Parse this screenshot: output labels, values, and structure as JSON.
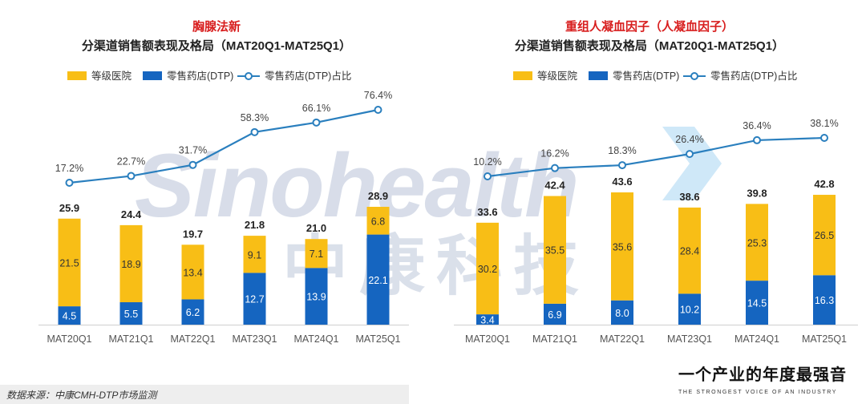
{
  "colors": {
    "hospital": "#f8be16",
    "dtp": "#1565c0",
    "line": "#2a7fbe",
    "title_red": "#d81e1e"
  },
  "legend": {
    "hospital": "等级医院",
    "dtp": "零售药店(DTP)",
    "share": "零售药店(DTP)占比"
  },
  "watermark": {
    "text": "Sinohealth",
    "cn": "中康科技"
  },
  "footer": {
    "source": "数据来源：中康CMH-DTP市场监测",
    "slogan": "一个产业的年度最强音",
    "slogan_en": "THE STRONGEST VOICE OF AN INDUSTRY"
  },
  "chart_data": [
    {
      "type": "bar",
      "stacked": true,
      "title": "胸腺法新",
      "subtitle": "分渠道销售额表现及格局（MAT20Q1-MAT25Q1）",
      "categories": [
        "MAT20Q1",
        "MAT21Q1",
        "MAT22Q1",
        "MAT23Q1",
        "MAT24Q1",
        "MAT25Q1"
      ],
      "totals": [
        "25.9",
        "24.4",
        "19.7",
        "21.8",
        "21.0",
        "28.9"
      ],
      "series": [
        {
          "name": "零售药店(DTP)",
          "values": [
            4.5,
            5.5,
            6.2,
            12.7,
            13.9,
            22.1
          ],
          "labels": [
            "4.5",
            "5.5",
            "6.2",
            "12.7",
            "13.9",
            "22.1"
          ]
        },
        {
          "name": "等级医院",
          "values": [
            21.5,
            18.9,
            13.4,
            9.1,
            7.1,
            6.8
          ],
          "labels": [
            "21.5",
            "18.9",
            "13.4",
            "9.1",
            "7.1",
            "6.8"
          ]
        }
      ],
      "share_line": {
        "name": "零售药店(DTP)占比",
        "values": [
          17.2,
          22.7,
          31.7,
          58.3,
          66.1,
          76.4
        ],
        "labels": [
          "17.2%",
          "22.7%",
          "31.7%",
          "58.3%",
          "66.1%",
          "76.4%"
        ]
      },
      "ylim": [
        0,
        28.9
      ],
      "share_ylim": [
        0,
        100
      ]
    },
    {
      "type": "bar",
      "stacked": true,
      "title": "重组人凝血因子（人凝血因子）",
      "subtitle": "分渠道销售额表现及格局（MAT20Q1-MAT25Q1）",
      "categories": [
        "MAT20Q1",
        "MAT21Q1",
        "MAT22Q1",
        "MAT23Q1",
        "MAT24Q1",
        "MAT25Q1"
      ],
      "totals": [
        "33.6",
        "42.4",
        "43.6",
        "38.6",
        "39.8",
        "42.8"
      ],
      "series": [
        {
          "name": "零售药店(DTP)",
          "values": [
            3.4,
            6.9,
            8.0,
            10.2,
            14.5,
            16.3
          ],
          "labels": [
            "3.4",
            "6.9",
            "8.0",
            "10.2",
            "14.5",
            "16.3"
          ]
        },
        {
          "name": "等级医院",
          "values": [
            30.2,
            35.5,
            35.6,
            28.4,
            25.3,
            26.5
          ],
          "labels": [
            "30.2",
            "35.5",
            "35.6",
            "28.4",
            "25.3",
            "26.5"
          ]
        }
      ],
      "share_line": {
        "name": "零售药店(DTP)占比",
        "values": [
          10.2,
          16.2,
          18.3,
          26.4,
          36.4,
          38.1
        ],
        "labels": [
          "10.2%",
          "16.2%",
          "18.3%",
          "26.4%",
          "36.4%",
          "38.1%"
        ]
      },
      "ylim": [
        0,
        43.6
      ],
      "share_ylim": [
        0,
        40
      ]
    }
  ]
}
